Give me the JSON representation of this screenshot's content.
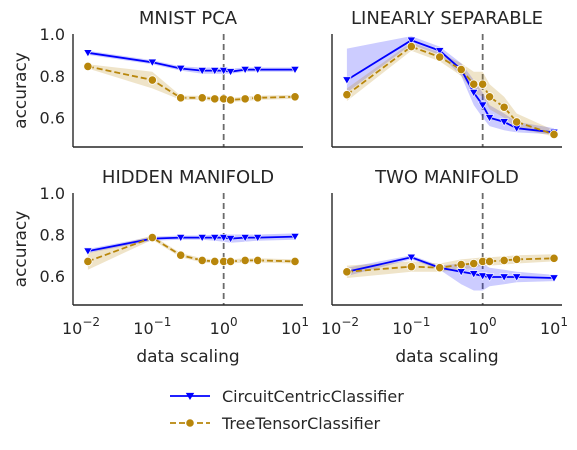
{
  "chart_data": {
    "type": "line",
    "shared": {
      "xlabel": "data scaling",
      "ylabel": "accuracy",
      "x_scale": "log",
      "xlim": [
        0.01,
        10
      ],
      "ylim": [
        0.46,
        1.0
      ],
      "x_ticks": [
        0.01,
        0.1,
        1,
        10
      ],
      "y_ticks": [
        0.6,
        0.8,
        1.0
      ],
      "y_tick_labels": [
        "0.6",
        "0.8",
        "1.0"
      ],
      "reference_line_x": 1,
      "legend_position": "bottom-center"
    },
    "series_styles": [
      {
        "name": "CircuitCentricClassifier",
        "color": "#0000ff",
        "marker": "triangle-down",
        "linestyle": "solid"
      },
      {
        "name": "TreeTensorClassifier",
        "color": "#b8860b",
        "marker": "circle",
        "linestyle": "dashed"
      }
    ],
    "panels": [
      {
        "title": "MNIST PCA",
        "x": [
          0.0125,
          0.1,
          0.25,
          0.5,
          0.75,
          1.0,
          1.25,
          2.0,
          3.0,
          10.0
        ],
        "series": [
          {
            "name": "CircuitCentricClassifier",
            "values": [
              0.91,
              0.865,
              0.835,
              0.825,
              0.825,
              0.825,
              0.82,
              0.83,
              0.83,
              0.83
            ],
            "lower": [
              0.9,
              0.855,
              0.825,
              0.81,
              0.81,
              0.81,
              0.81,
              0.82,
              0.82,
              0.82
            ],
            "upper": [
              0.92,
              0.875,
              0.845,
              0.84,
              0.84,
              0.84,
              0.835,
              0.84,
              0.84,
              0.84
            ]
          },
          {
            "name": "TreeTensorClassifier",
            "values": [
              0.845,
              0.78,
              0.695,
              0.695,
              0.69,
              0.69,
              0.685,
              0.69,
              0.695,
              0.7
            ],
            "lower": [
              0.835,
              0.74,
              0.685,
              0.685,
              0.68,
              0.68,
              0.675,
              0.68,
              0.685,
              0.69
            ],
            "upper": [
              0.855,
              0.82,
              0.705,
              0.705,
              0.7,
              0.7,
              0.695,
              0.7,
              0.705,
              0.71
            ]
          }
        ]
      },
      {
        "title": "LINEARLY SEPARABLE",
        "x": [
          0.0125,
          0.1,
          0.25,
          0.5,
          0.75,
          1.0,
          1.25,
          2.0,
          3.0,
          10.0
        ],
        "series": [
          {
            "name": "CircuitCentricClassifier",
            "values": [
              0.78,
              0.97,
              0.92,
              0.83,
              0.72,
              0.66,
              0.6,
              0.58,
              0.55,
              0.53
            ],
            "lower": [
              0.72,
              0.95,
              0.9,
              0.8,
              0.66,
              0.6,
              0.56,
              0.54,
              0.53,
              0.52
            ],
            "upper": [
              0.93,
              0.99,
              0.94,
              0.86,
              0.78,
              0.72,
              0.66,
              0.62,
              0.58,
              0.55
            ]
          },
          {
            "name": "TreeTensorClassifier",
            "values": [
              0.71,
              0.94,
              0.89,
              0.83,
              0.76,
              0.76,
              0.7,
              0.65,
              0.58,
              0.52
            ],
            "lower": [
              0.68,
              0.92,
              0.87,
              0.8,
              0.72,
              0.7,
              0.64,
              0.6,
              0.55,
              0.51
            ],
            "upper": [
              0.74,
              0.96,
              0.91,
              0.86,
              0.82,
              0.82,
              0.76,
              0.7,
              0.62,
              0.54
            ]
          }
        ]
      },
      {
        "title": "HIDDEN MANIFOLD",
        "x": [
          0.0125,
          0.1,
          0.25,
          0.5,
          0.75,
          1.0,
          1.25,
          2.0,
          3.0,
          10.0
        ],
        "series": [
          {
            "name": "CircuitCentricClassifier",
            "values": [
              0.72,
              0.78,
              0.785,
              0.785,
              0.785,
              0.785,
              0.78,
              0.785,
              0.785,
              0.79
            ],
            "lower": [
              0.71,
              0.77,
              0.775,
              0.775,
              0.77,
              0.765,
              0.76,
              0.765,
              0.77,
              0.775
            ],
            "upper": [
              0.73,
              0.79,
              0.795,
              0.795,
              0.8,
              0.8,
              0.8,
              0.8,
              0.8,
              0.805
            ]
          },
          {
            "name": "TreeTensorClassifier",
            "values": [
              0.67,
              0.785,
              0.7,
              0.675,
              0.67,
              0.67,
              0.67,
              0.675,
              0.675,
              0.67
            ],
            "lower": [
              0.63,
              0.775,
              0.69,
              0.665,
              0.66,
              0.66,
              0.66,
              0.665,
              0.665,
              0.66
            ],
            "upper": [
              0.71,
              0.795,
              0.71,
              0.685,
              0.68,
              0.68,
              0.68,
              0.685,
              0.685,
              0.68
            ]
          }
        ]
      },
      {
        "title": "TWO MANIFOLD",
        "x": [
          0.0125,
          0.1,
          0.25,
          0.5,
          0.75,
          1.0,
          1.25,
          2.0,
          3.0,
          10.0
        ],
        "series": [
          {
            "name": "CircuitCentricClassifier",
            "values": [
              0.62,
              0.69,
              0.64,
              0.62,
              0.61,
              0.6,
              0.595,
              0.595,
              0.595,
              0.59
            ],
            "lower": [
              0.6,
              0.68,
              0.63,
              0.56,
              0.53,
              0.53,
              0.55,
              0.56,
              0.57,
              0.575
            ],
            "upper": [
              0.64,
              0.7,
              0.65,
              0.66,
              0.66,
              0.66,
              0.64,
              0.63,
              0.62,
              0.605
            ]
          },
          {
            "name": "TreeTensorClassifier",
            "values": [
              0.62,
              0.645,
              0.64,
              0.655,
              0.66,
              0.67,
              0.67,
              0.675,
              0.68,
              0.685
            ],
            "lower": [
              0.59,
              0.62,
              0.62,
              0.63,
              0.64,
              0.65,
              0.65,
              0.655,
              0.66,
              0.67
            ],
            "upper": [
              0.65,
              0.67,
              0.66,
              0.68,
              0.685,
              0.69,
              0.69,
              0.695,
              0.7,
              0.705
            ]
          }
        ]
      }
    ]
  }
}
